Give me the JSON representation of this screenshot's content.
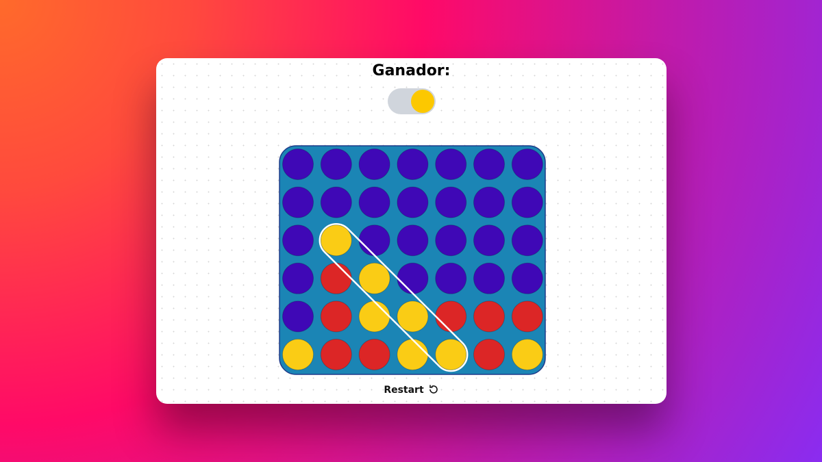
{
  "title": "Ganador:",
  "toggle": {
    "state": "on",
    "color": "#fcc800"
  },
  "board": {
    "rows": 6,
    "cols": 7,
    "colors": {
      "board": "#1b85b5",
      "empty": "#3f08b6",
      "red": "#dc2626",
      "yellow": "#facc15",
      "highlight": "#ffffff"
    },
    "cells": [
      [
        "E",
        "E",
        "E",
        "E",
        "E",
        "E",
        "E"
      ],
      [
        "E",
        "E",
        "E",
        "E",
        "E",
        "E",
        "E"
      ],
      [
        "E",
        "Y",
        "E",
        "E",
        "E",
        "E",
        "E"
      ],
      [
        "E",
        "R",
        "Y",
        "E",
        "E",
        "E",
        "E"
      ],
      [
        "E",
        "R",
        "Y",
        "Y",
        "R",
        "R",
        "R"
      ],
      [
        "Y",
        "R",
        "R",
        "Y",
        "Y",
        "R",
        "Y"
      ]
    ],
    "winning_line": [
      [
        2,
        1
      ],
      [
        5,
        4
      ]
    ]
  },
  "restart": {
    "label": "Restart",
    "icon": "refresh-icon"
  }
}
